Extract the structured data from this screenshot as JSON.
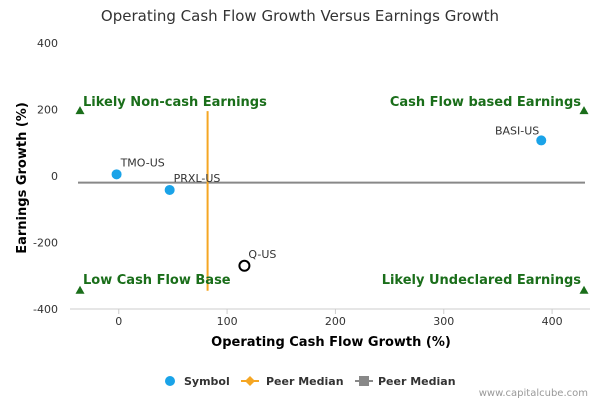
{
  "chart_data": {
    "type": "scatter",
    "title": "Operating Cash Flow Growth Versus Earnings Growth",
    "xlabel": "Operating Cash Flow Growth (%)",
    "ylabel": "Earnings Growth (%)",
    "xlim": [
      -45,
      435
    ],
    "ylim": [
      -400,
      400
    ],
    "x_ticks": [
      0,
      100,
      200,
      300,
      400
    ],
    "y_ticks": [
      400,
      200,
      0,
      -200,
      -400
    ],
    "points": [
      {
        "label": "TMO-US",
        "x": -2,
        "y": 5,
        "style": "filled",
        "color": "#1aa3e8"
      },
      {
        "label": "PRXL-US",
        "x": 47,
        "y": -42,
        "style": "filled",
        "color": "#1aa3e8"
      },
      {
        "label": "BASI-US",
        "x": 390,
        "y": 107,
        "style": "filled",
        "color": "#1aa3e8"
      },
      {
        "label": "Q-US",
        "x": 116,
        "y": -270,
        "style": "hollow",
        "color": "#000000"
      }
    ],
    "peer_median_x": 82,
    "peer_median_y": -20,
    "peer_median_x_range": [
      -345,
      195
    ],
    "quadrant_labels": {
      "top_left": "Likely Non-cash Earnings",
      "top_right": "Cash Flow based Earnings",
      "bottom_left": "Low Cash Flow Base",
      "bottom_right": "Likely Undeclared Earnings"
    },
    "quadrant_marker_y": {
      "top": 195,
      "bottom": -345
    },
    "legend": [
      {
        "label": "Symbol",
        "marker": "circle",
        "color": "#1aa3e8"
      },
      {
        "label": "Peer Median",
        "marker": "diamond-line",
        "color": "#f5a623"
      },
      {
        "label": "Peer Median",
        "marker": "square-line",
        "color": "#888888"
      }
    ],
    "colors": {
      "quadrant_text": "#1a6e1a",
      "vline": "#f5a623",
      "hline": "#888888"
    }
  },
  "footer": {
    "credit": "www.capitalcube.com"
  }
}
